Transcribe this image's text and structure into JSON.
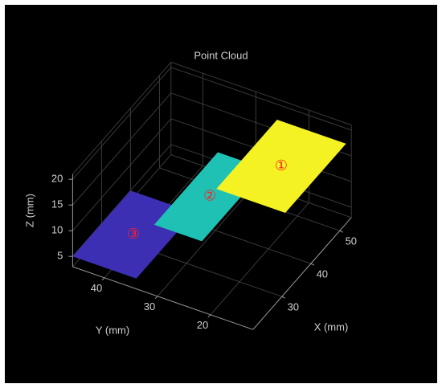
{
  "chart_data": {
    "type": "plane3d",
    "title": "Point Cloud",
    "xlabel": "X (mm)",
    "ylabel": "Y (mm)",
    "zlabel": "Z (mm)",
    "xlim": [
      20,
      54
    ],
    "ylim": [
      12,
      46
    ],
    "zlim": [
      3,
      21
    ],
    "xticks": [
      30,
      40,
      50
    ],
    "yticks": [
      20,
      30,
      40
    ],
    "zticks": [
      5,
      10,
      15,
      20
    ],
    "grid": true,
    "series": [
      {
        "label": "③",
        "color": "#3d2fb4",
        "x": [
          20,
          40
        ],
        "y": [
          34,
          46
        ],
        "z": 5
      },
      {
        "label": "②",
        "color": "#1fc1b5",
        "x": [
          28,
          50
        ],
        "y": [
          26,
          35
        ],
        "z": 10
      },
      {
        "label": "①",
        "color": "#f5f223",
        "x": [
          33,
          54
        ],
        "y": [
          13,
          26
        ],
        "z": 17
      }
    ]
  }
}
